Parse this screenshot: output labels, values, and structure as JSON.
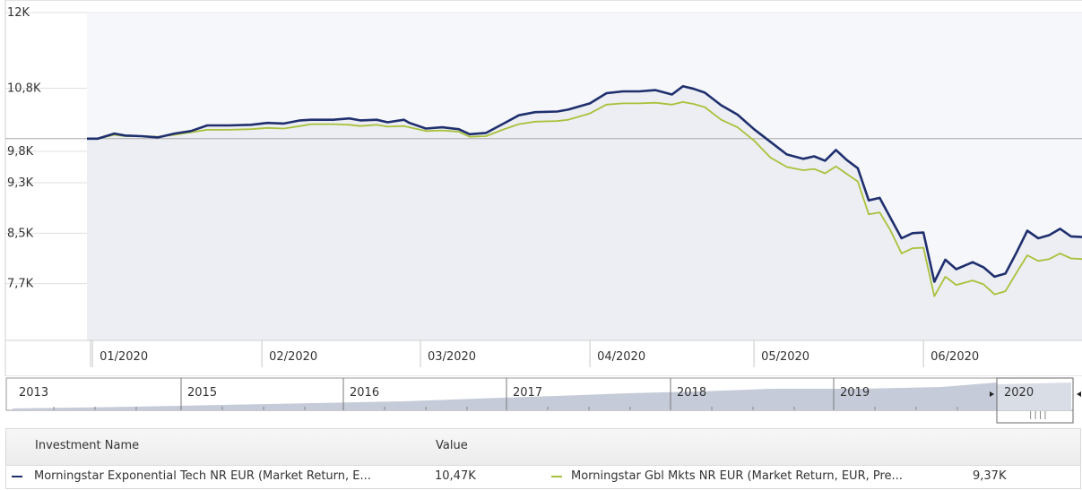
{
  "chart_data": {
    "type": "line",
    "y_ticks": [
      "12K",
      "10,8K",
      "9,8K",
      "9,3K",
      "8,5K",
      "7,7K"
    ],
    "y_tick_values": [
      12000,
      10800,
      9800,
      9300,
      8500,
      7700
    ],
    "ylim": [
      6800,
      12000
    ],
    "baseline": 10000,
    "x_labels": [
      "01/2020",
      "02/2020",
      "03/2020",
      "04/2020",
      "05/2020",
      "06/2020"
    ],
    "x_label_dates": [
      "2020-01-01",
      "2020-02-01",
      "2020-03-01",
      "2020-04-01",
      "2020-05-01",
      "2020-06-01"
    ],
    "xlim": [
      "2019-12-31",
      "2020-06-30"
    ],
    "grid": true,
    "series": [
      {
        "name": "Morningstar Exponential Tech NR EUR (Market Return, E...",
        "color": "#1f2f6e",
        "points": [
          [
            "2019-12-31",
            10000
          ],
          [
            "2020-01-02",
            10000
          ],
          [
            "2020-01-05",
            10080
          ],
          [
            "2020-01-07",
            10050
          ],
          [
            "2020-01-10",
            10040
          ],
          [
            "2020-01-13",
            10020
          ],
          [
            "2020-01-16",
            10080
          ],
          [
            "2020-01-19",
            10120
          ],
          [
            "2020-01-22",
            10210
          ],
          [
            "2020-01-26",
            10210
          ],
          [
            "2020-01-30",
            10220
          ],
          [
            "2020-02-02",
            10250
          ],
          [
            "2020-02-05",
            10240
          ],
          [
            "2020-02-08",
            10290
          ],
          [
            "2020-02-10",
            10300
          ],
          [
            "2020-02-14",
            10300
          ],
          [
            "2020-02-17",
            10320
          ],
          [
            "2020-02-19",
            10290
          ],
          [
            "2020-02-22",
            10300
          ],
          [
            "2020-02-24",
            10260
          ],
          [
            "2020-02-27",
            10300
          ],
          [
            "2020-02-28",
            10250
          ],
          [
            "2020-03-02",
            10160
          ],
          [
            "2020-03-05",
            10180
          ],
          [
            "2020-03-08",
            10150
          ],
          [
            "2020-03-10",
            10070
          ],
          [
            "2020-03-13",
            10090
          ],
          [
            "2020-03-16",
            10230
          ],
          [
            "2020-03-19",
            10370
          ],
          [
            "2020-03-22",
            10420
          ],
          [
            "2020-03-26",
            10430
          ],
          [
            "2020-03-28",
            10460
          ],
          [
            "2020-04-01",
            10560
          ],
          [
            "2020-04-04",
            10720
          ],
          [
            "2020-04-07",
            10750
          ],
          [
            "2020-04-10",
            10750
          ],
          [
            "2020-04-13",
            10770
          ],
          [
            "2020-04-16",
            10700
          ],
          [
            "2020-04-18",
            10830
          ],
          [
            "2020-04-20",
            10790
          ],
          [
            "2020-04-22",
            10730
          ],
          [
            "2020-04-25",
            10530
          ],
          [
            "2020-04-28",
            10380
          ],
          [
            "2020-05-01",
            10150
          ],
          [
            "2020-05-04",
            9950
          ],
          [
            "2020-05-07",
            9750
          ],
          [
            "2020-05-10",
            9680
          ],
          [
            "2020-05-12",
            9720
          ],
          [
            "2020-05-14",
            9650
          ],
          [
            "2020-05-16",
            9820
          ],
          [
            "2020-05-18",
            9660
          ],
          [
            "2020-05-20",
            9530
          ],
          [
            "2020-05-22",
            9020
          ],
          [
            "2020-05-24",
            9060
          ],
          [
            "2020-05-26",
            8740
          ],
          [
            "2020-05-28",
            8420
          ],
          [
            "2020-05-30",
            8500
          ],
          [
            "2020-06-01",
            8510
          ],
          [
            "2020-06-03",
            7730
          ],
          [
            "2020-06-05",
            8080
          ],
          [
            "2020-06-07",
            7930
          ],
          [
            "2020-06-10",
            8040
          ],
          [
            "2020-06-12",
            7960
          ],
          [
            "2020-06-14",
            7810
          ],
          [
            "2020-06-16",
            7860
          ],
          [
            "2020-06-18",
            8190
          ],
          [
            "2020-06-20",
            8540
          ],
          [
            "2020-06-22",
            8420
          ],
          [
            "2020-06-24",
            8470
          ],
          [
            "2020-06-26",
            8570
          ],
          [
            "2020-06-28",
            8450
          ],
          [
            "2020-06-30",
            8440
          ]
        ]
      },
      {
        "name": "Morningstar Gbl Mkts NR EUR (Market Return, EUR, Pre...",
        "color": "#a8c13a",
        "points": [
          [
            "2019-12-31",
            10000
          ],
          [
            "2020-01-02",
            10000
          ],
          [
            "2020-01-05",
            10060
          ],
          [
            "2020-01-07",
            10040
          ],
          [
            "2020-01-10",
            10040
          ],
          [
            "2020-01-13",
            10030
          ],
          [
            "2020-01-16",
            10060
          ],
          [
            "2020-01-19",
            10100
          ],
          [
            "2020-01-22",
            10140
          ],
          [
            "2020-01-26",
            10140
          ],
          [
            "2020-01-30",
            10150
          ],
          [
            "2020-02-02",
            10170
          ],
          [
            "2020-02-05",
            10160
          ],
          [
            "2020-02-08",
            10200
          ],
          [
            "2020-02-10",
            10230
          ],
          [
            "2020-02-14",
            10230
          ],
          [
            "2020-02-17",
            10220
          ],
          [
            "2020-02-19",
            10200
          ],
          [
            "2020-02-22",
            10220
          ],
          [
            "2020-02-24",
            10190
          ],
          [
            "2020-02-27",
            10200
          ],
          [
            "2020-02-28",
            10180
          ],
          [
            "2020-03-02",
            10120
          ],
          [
            "2020-03-05",
            10130
          ],
          [
            "2020-03-08",
            10110
          ],
          [
            "2020-03-10",
            10030
          ],
          [
            "2020-03-13",
            10040
          ],
          [
            "2020-03-16",
            10140
          ],
          [
            "2020-03-19",
            10230
          ],
          [
            "2020-03-22",
            10270
          ],
          [
            "2020-03-26",
            10280
          ],
          [
            "2020-03-28",
            10300
          ],
          [
            "2020-04-01",
            10400
          ],
          [
            "2020-04-04",
            10540
          ],
          [
            "2020-04-07",
            10560
          ],
          [
            "2020-04-10",
            10560
          ],
          [
            "2020-04-13",
            10570
          ],
          [
            "2020-04-16",
            10540
          ],
          [
            "2020-04-18",
            10580
          ],
          [
            "2020-04-20",
            10550
          ],
          [
            "2020-04-22",
            10500
          ],
          [
            "2020-04-25",
            10300
          ],
          [
            "2020-04-28",
            10180
          ],
          [
            "2020-05-01",
            9970
          ],
          [
            "2020-05-04",
            9700
          ],
          [
            "2020-05-07",
            9550
          ],
          [
            "2020-05-10",
            9500
          ],
          [
            "2020-05-12",
            9520
          ],
          [
            "2020-05-14",
            9450
          ],
          [
            "2020-05-16",
            9560
          ],
          [
            "2020-05-18",
            9440
          ],
          [
            "2020-05-20",
            9320
          ],
          [
            "2020-05-22",
            8800
          ],
          [
            "2020-05-24",
            8830
          ],
          [
            "2020-05-26",
            8540
          ],
          [
            "2020-05-28",
            8180
          ],
          [
            "2020-05-30",
            8260
          ],
          [
            "2020-06-01",
            8270
          ],
          [
            "2020-06-03",
            7500
          ],
          [
            "2020-06-05",
            7810
          ],
          [
            "2020-06-07",
            7680
          ],
          [
            "2020-06-10",
            7750
          ],
          [
            "2020-06-12",
            7690
          ],
          [
            "2020-06-14",
            7530
          ],
          [
            "2020-06-16",
            7580
          ],
          [
            "2020-06-18",
            7870
          ],
          [
            "2020-06-20",
            8150
          ],
          [
            "2020-06-22",
            8060
          ],
          [
            "2020-06-24",
            8090
          ],
          [
            "2020-06-26",
            8180
          ],
          [
            "2020-06-28",
            8100
          ],
          [
            "2020-06-30",
            8090
          ]
        ]
      }
    ]
  },
  "navigator": {
    "years": [
      "2013",
      "2015",
      "2016",
      "2017",
      "2018",
      "2019"
    ],
    "selected_label": "2020",
    "selected_range": [
      "2020-01-01",
      "2020-06-30"
    ]
  },
  "legend": {
    "header_name": "Investment Name",
    "header_value": "Value",
    "items": [
      {
        "name": "Morningstar Exponential Tech NR EUR (Market Return, E...",
        "value": "10,47K",
        "color": "#1f2f6e"
      },
      {
        "name": "Morningstar Gbl Mkts NR EUR (Market Return, EUR, Pre...",
        "value": "9,37K",
        "color": "#a8c13a"
      }
    ]
  }
}
